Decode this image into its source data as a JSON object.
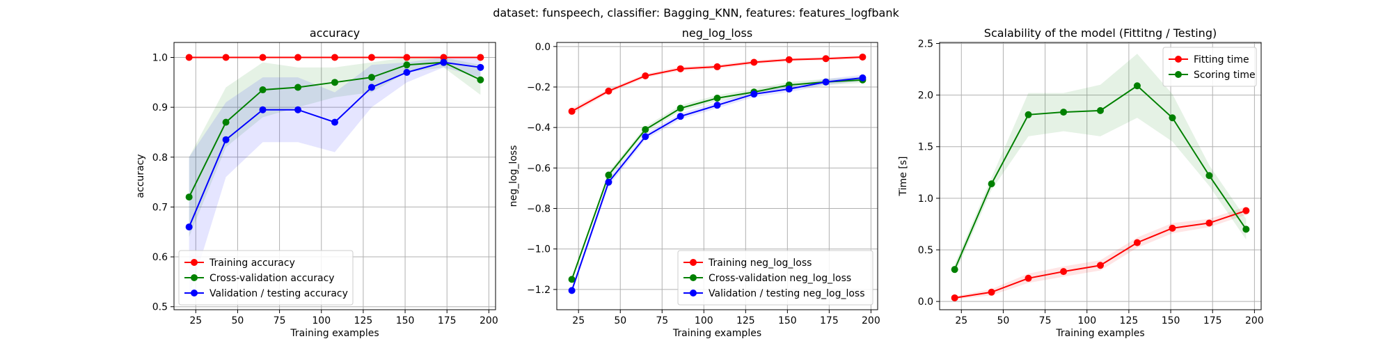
{
  "figure": {
    "suptitle": "dataset: funspeech, classifier: Bagging_KNN, features: features_logfbank"
  },
  "colors": {
    "red": "#ff0000",
    "green": "#008000",
    "blue": "#0000ff",
    "grid": "#b0b0b0"
  },
  "chart_data": [
    {
      "type": "line",
      "title": "accuracy",
      "xlabel": "Training examples",
      "ylabel": "accuracy",
      "xlim": [
        12,
        204
      ],
      "ylim": [
        0.494,
        1.03
      ],
      "xticks": [
        25,
        50,
        75,
        100,
        125,
        150,
        175,
        200
      ],
      "yticks": [
        0.5,
        0.6,
        0.7,
        0.8,
        0.9,
        1.0
      ],
      "ytick_labels": [
        "0.5",
        "0.6",
        "0.7",
        "0.8",
        "0.9",
        "1.0"
      ],
      "grid": true,
      "legend_position": "lower-left",
      "x": [
        21,
        43,
        65,
        86,
        108,
        130,
        151,
        173,
        195
      ],
      "series": [
        {
          "name": "Training accuracy",
          "color": "#ff0000",
          "values": [
            1.0,
            1.0,
            1.0,
            1.0,
            1.0,
            1.0,
            1.0,
            1.0,
            1.0
          ],
          "band_low": [
            1.0,
            1.0,
            1.0,
            1.0,
            1.0,
            1.0,
            1.0,
            1.0,
            1.0
          ],
          "band_high": [
            1.0,
            1.0,
            1.0,
            1.0,
            1.0,
            1.0,
            1.0,
            1.0,
            1.0
          ]
        },
        {
          "name": "Cross-validation accuracy",
          "color": "#008000",
          "values": [
            0.72,
            0.87,
            0.935,
            0.94,
            0.95,
            0.96,
            0.985,
            0.99,
            0.955
          ],
          "band_low": [
            0.64,
            0.82,
            0.88,
            0.9,
            0.92,
            0.93,
            0.97,
            0.98,
            0.925
          ],
          "band_high": [
            0.8,
            0.94,
            0.99,
            0.98,
            0.98,
            0.99,
            1.0,
            1.0,
            0.985
          ]
        },
        {
          "name": "Validation / testing accuracy",
          "color": "#0000ff",
          "values": [
            0.66,
            0.835,
            0.895,
            0.895,
            0.87,
            0.94,
            0.97,
            0.99,
            0.98
          ],
          "band_low": [
            0.52,
            0.76,
            0.83,
            0.83,
            0.81,
            0.9,
            0.95,
            0.98,
            0.96
          ],
          "band_high": [
            0.8,
            0.91,
            0.96,
            0.96,
            0.93,
            0.985,
            0.99,
            1.0,
            1.0
          ]
        }
      ]
    },
    {
      "type": "line",
      "title": "neg_log_loss",
      "xlabel": "Training examples",
      "ylabel": "neg_log_loss",
      "xlim": [
        12,
        204
      ],
      "ylim": [
        -1.3,
        0.02
      ],
      "xticks": [
        25,
        50,
        75,
        100,
        125,
        150,
        175,
        200
      ],
      "yticks": [
        -1.2,
        -1.0,
        -0.8,
        -0.6,
        -0.4,
        -0.2,
        0.0
      ],
      "ytick_labels": [
        "−1.2",
        "−1.0",
        "−0.8",
        "−0.6",
        "−0.4",
        "−0.2",
        "0.0"
      ],
      "grid": true,
      "legend_position": "lower-right",
      "x": [
        21,
        43,
        65,
        86,
        108,
        130,
        151,
        173,
        195
      ],
      "series": [
        {
          "name": "Training neg_log_loss",
          "color": "#ff0000",
          "values": [
            -0.32,
            -0.22,
            -0.145,
            -0.11,
            -0.1,
            -0.078,
            -0.065,
            -0.06,
            -0.052
          ],
          "band_low": [
            -0.335,
            -0.23,
            -0.155,
            -0.12,
            -0.11,
            -0.088,
            -0.073,
            -0.068,
            -0.06
          ],
          "band_high": [
            -0.305,
            -0.21,
            -0.135,
            -0.1,
            -0.09,
            -0.068,
            -0.057,
            -0.052,
            -0.044
          ]
        },
        {
          "name": "Cross-validation neg_log_loss",
          "color": "#008000",
          "values": [
            -1.15,
            -0.635,
            -0.41,
            -0.305,
            -0.255,
            -0.225,
            -0.19,
            -0.175,
            -0.165
          ],
          "band_low": [
            -1.16,
            -0.65,
            -0.425,
            -0.32,
            -0.27,
            -0.24,
            -0.205,
            -0.19,
            -0.18
          ],
          "band_high": [
            -1.14,
            -0.62,
            -0.395,
            -0.29,
            -0.24,
            -0.21,
            -0.175,
            -0.16,
            -0.15
          ]
        },
        {
          "name": "Validation / testing neg_log_loss",
          "color": "#0000ff",
          "values": [
            -1.205,
            -0.67,
            -0.445,
            -0.345,
            -0.29,
            -0.235,
            -0.21,
            -0.175,
            -0.155
          ],
          "band_low": [
            -1.22,
            -0.69,
            -0.46,
            -0.36,
            -0.305,
            -0.25,
            -0.225,
            -0.19,
            -0.17
          ],
          "band_high": [
            -1.19,
            -0.65,
            -0.43,
            -0.33,
            -0.275,
            -0.22,
            -0.195,
            -0.16,
            -0.14
          ]
        }
      ]
    },
    {
      "type": "line",
      "title": "Scalability of the model (Fittitng / Testing)",
      "xlabel": "Training examples",
      "ylabel": "Time [s]",
      "xlim": [
        12,
        204
      ],
      "ylim": [
        -0.08,
        2.51
      ],
      "xticks": [
        25,
        50,
        75,
        100,
        125,
        150,
        175,
        200
      ],
      "yticks": [
        0.0,
        0.5,
        1.0,
        1.5,
        2.0,
        2.5
      ],
      "ytick_labels": [
        "0.0",
        "0.5",
        "1.0",
        "1.5",
        "2.0",
        "2.5"
      ],
      "grid": true,
      "legend_position": "upper-right",
      "x": [
        21,
        43,
        65,
        86,
        108,
        130,
        151,
        173,
        195
      ],
      "series": [
        {
          "name": "Fitting time",
          "color": "#ff0000",
          "values": [
            0.035,
            0.09,
            0.225,
            0.29,
            0.35,
            0.57,
            0.71,
            0.76,
            0.88
          ],
          "band_low": [
            0.02,
            0.06,
            0.18,
            0.24,
            0.3,
            0.52,
            0.66,
            0.72,
            0.84
          ],
          "band_high": [
            0.05,
            0.12,
            0.27,
            0.34,
            0.4,
            0.62,
            0.76,
            0.8,
            0.92
          ]
        },
        {
          "name": "Scoring time",
          "color": "#008000",
          "values": [
            0.31,
            1.14,
            1.81,
            1.835,
            1.85,
            2.09,
            1.78,
            1.22,
            0.7
          ],
          "band_low": [
            0.26,
            1.08,
            1.6,
            1.65,
            1.6,
            1.78,
            1.55,
            1.12,
            0.6
          ],
          "band_high": [
            0.36,
            1.2,
            2.02,
            2.02,
            2.1,
            2.4,
            2.01,
            1.32,
            0.8
          ]
        }
      ]
    }
  ]
}
